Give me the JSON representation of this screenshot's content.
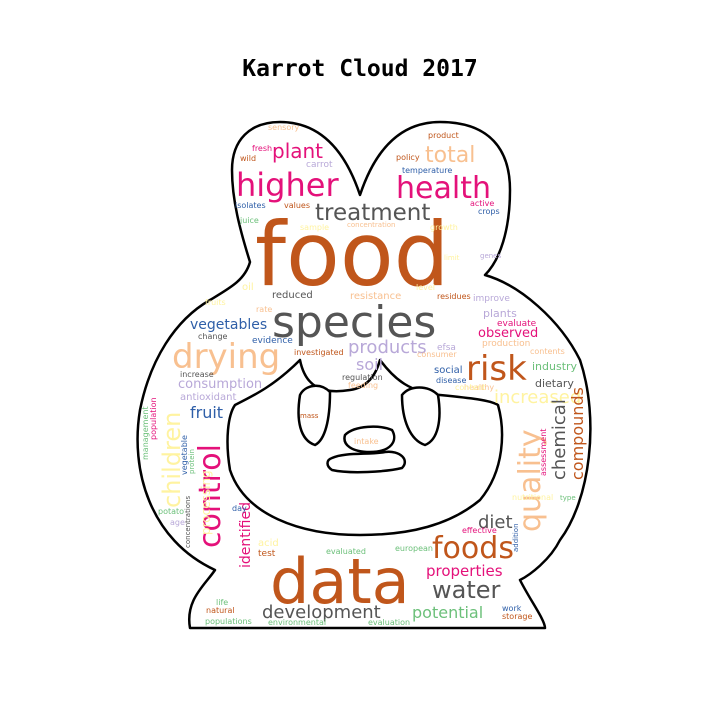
{
  "title": "Karrot Cloud 2017",
  "colors": {
    "brown": "#c0561b",
    "gray": "#555555",
    "magenta": "#e4117a",
    "peach": "#f8c090",
    "lavender": "#b8a8d8",
    "blue": "#2f5fa8",
    "green": "#6cc07a",
    "yellow": "#fff3a0",
    "dark": "#4a4a4a"
  },
  "words": [
    {
      "text": "food",
      "color": "brown"
    },
    {
      "text": "data",
      "color": "brown"
    },
    {
      "text": "species",
      "color": "gray"
    },
    {
      "text": "higher",
      "color": "magenta"
    },
    {
      "text": "health",
      "color": "magenta"
    },
    {
      "text": "treatment",
      "color": "gray"
    },
    {
      "text": "drying",
      "color": "peach"
    },
    {
      "text": "risk",
      "color": "brown"
    },
    {
      "text": "control",
      "color": "magenta"
    },
    {
      "text": "quality",
      "color": "peach"
    },
    {
      "text": "foods",
      "color": "brown"
    },
    {
      "text": "water",
      "color": "gray"
    },
    {
      "text": "plant",
      "color": "magenta"
    },
    {
      "text": "total",
      "color": "peach"
    },
    {
      "text": "children",
      "color": "yellow"
    },
    {
      "text": "products",
      "color": "lavender"
    },
    {
      "text": "soil",
      "color": "lavender"
    },
    {
      "text": "vegetables",
      "color": "blue"
    },
    {
      "text": "consumption",
      "color": "lavender"
    },
    {
      "text": "fruit",
      "color": "blue"
    },
    {
      "text": "increased",
      "color": "yellow"
    },
    {
      "text": "chemical",
      "color": "gray"
    },
    {
      "text": "compounds",
      "color": "brown"
    },
    {
      "text": "diet",
      "color": "gray"
    },
    {
      "text": "properties",
      "color": "magenta"
    },
    {
      "text": "potential",
      "color": "green"
    },
    {
      "text": "development",
      "color": "gray"
    },
    {
      "text": "identified",
      "color": "magenta"
    },
    {
      "text": "observed",
      "color": "magenta"
    },
    {
      "text": "dietary",
      "color": "gray"
    },
    {
      "text": "industry",
      "color": "green"
    },
    {
      "text": "social",
      "color": "blue"
    },
    {
      "text": "efsa",
      "color": "lavender"
    },
    {
      "text": "plants",
      "color": "lavender"
    },
    {
      "text": "evaluate",
      "color": "magenta"
    },
    {
      "text": "production",
      "color": "peach"
    },
    {
      "text": "sensory",
      "color": "peach"
    },
    {
      "text": "fresh",
      "color": "magenta"
    },
    {
      "text": "wild",
      "color": "brown"
    },
    {
      "text": "carrot",
      "color": "lavender"
    },
    {
      "text": "product",
      "color": "brown"
    },
    {
      "text": "policy",
      "color": "brown"
    },
    {
      "text": "temperature",
      "color": "blue"
    },
    {
      "text": "isolates",
      "color": "blue"
    },
    {
      "text": "values",
      "color": "brown"
    },
    {
      "text": "active",
      "color": "magenta"
    },
    {
      "text": "crops",
      "color": "blue"
    },
    {
      "text": "juice",
      "color": "green"
    },
    {
      "text": "concentration",
      "color": "peach"
    },
    {
      "text": "reduced",
      "color": "gray"
    },
    {
      "text": "resistance",
      "color": "peach"
    },
    {
      "text": "residues",
      "color": "brown"
    },
    {
      "text": "improve",
      "color": "lavender"
    },
    {
      "text": "oil",
      "color": "yellow"
    },
    {
      "text": "rate",
      "color": "peach"
    },
    {
      "text": "change",
      "color": "gray"
    },
    {
      "text": "evidence",
      "color": "blue"
    },
    {
      "text": "investigated",
      "color": "brown"
    },
    {
      "text": "consumer",
      "color": "peach"
    },
    {
      "text": "increase",
      "color": "gray"
    },
    {
      "text": "regulation",
      "color": "gray"
    },
    {
      "text": "feeding",
      "color": "peach"
    },
    {
      "text": "disease",
      "color": "blue"
    },
    {
      "text": "healthy",
      "color": "peach"
    },
    {
      "text": "antioxidant",
      "color": "lavender"
    },
    {
      "text": "mass",
      "color": "brown"
    },
    {
      "text": "intake",
      "color": "peach"
    },
    {
      "text": "population",
      "color": "magenta"
    },
    {
      "text": "management",
      "color": "green"
    },
    {
      "text": "vegetable",
      "color": "blue"
    },
    {
      "text": "protein",
      "color": "green"
    },
    {
      "text": "assessment",
      "color": "magenta"
    },
    {
      "text": "type",
      "color": "green"
    },
    {
      "text": "genes",
      "color": "lavender"
    },
    {
      "text": "potato",
      "color": "green"
    },
    {
      "text": "age",
      "color": "lavender"
    },
    {
      "text": "day",
      "color": "blue"
    },
    {
      "text": "concentrations",
      "color": "gray"
    },
    {
      "text": "acid",
      "color": "yellow"
    },
    {
      "text": "test",
      "color": "brown"
    },
    {
      "text": "evaluated",
      "color": "green"
    },
    {
      "text": "european",
      "color": "green"
    },
    {
      "text": "effective",
      "color": "magenta"
    },
    {
      "text": "addition",
      "color": "blue"
    },
    {
      "text": "life",
      "color": "green"
    },
    {
      "text": "natural",
      "color": "brown"
    },
    {
      "text": "populations",
      "color": "green"
    },
    {
      "text": "environmental",
      "color": "green"
    },
    {
      "text": "evaluation",
      "color": "green"
    },
    {
      "text": "work",
      "color": "blue"
    },
    {
      "text": "storage",
      "color": "brown"
    },
    {
      "text": "processing",
      "color": "yellow"
    },
    {
      "text": "growth",
      "color": "yellow"
    },
    {
      "text": "limit",
      "color": "yellow"
    },
    {
      "text": "sample",
      "color": "yellow"
    },
    {
      "text": "fruits",
      "color": "yellow"
    },
    {
      "text": "nutritional",
      "color": "yellow"
    },
    {
      "text": "content",
      "color": "yellow"
    },
    {
      "text": "level",
      "color": "yellow"
    },
    {
      "text": "contents",
      "color": "peach"
    }
  ]
}
